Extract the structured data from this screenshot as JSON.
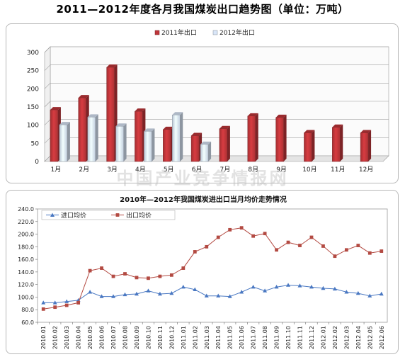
{
  "page_title": "2011—2012年度各月我国煤炭出口趋势图（单位：万吨）",
  "watermark": "中国产业竞争情报网",
  "chart_data": [
    {
      "type": "bar",
      "categories": [
        "1月",
        "2月",
        "3月",
        "4月",
        "5月",
        "6月",
        "7月",
        "8月",
        "9月",
        "10月",
        "11月",
        "12月"
      ],
      "series": [
        {
          "name": "2011年出口",
          "color": "#c0363a",
          "values": [
            142,
            175,
            259,
            138,
            88,
            71,
            90,
            125,
            121,
            79,
            94,
            79
          ]
        },
        {
          "name": "2012年出口",
          "color": "#d9e6f8",
          "values": [
            101,
            122,
            97,
            83,
            128,
            47,
            null,
            null,
            null,
            null,
            null,
            null
          ]
        }
      ],
      "yticks": [
        0,
        50,
        100,
        150,
        200,
        250,
        300
      ],
      "ylim": [
        0,
        300
      ],
      "legend_position": "top"
    },
    {
      "type": "line",
      "title": "2010年—2012年我国煤炭进出口当月均价走势情况",
      "categories": [
        "2010.01",
        "2010.02",
        "2010.03",
        "2010.04",
        "2010.05",
        "2010.06",
        "2010.07",
        "2010.08",
        "2010.09",
        "2010.10",
        "2010.11",
        "2010.12",
        "2011.01",
        "2011.02",
        "2011.03",
        "2011.04",
        "2011.05",
        "2011.06",
        "2011.07",
        "2011.08",
        "2011.09",
        "2011.10",
        "2011.11",
        "2011.12",
        "2012.01",
        "2012.02",
        "2012.03",
        "2012.04",
        "2012.05",
        "2012.06"
      ],
      "series": [
        {
          "name": "进口均价",
          "color": "#4a78c2",
          "marker": "triangle",
          "values": [
            91,
            91,
            93,
            95,
            108,
            101,
            101,
            104,
            105,
            110,
            105,
            106,
            116,
            112,
            102,
            102,
            101,
            108,
            116,
            110,
            116,
            119,
            118,
            116,
            114,
            113,
            108,
            106,
            102,
            105
          ]
        },
        {
          "name": "出口均价",
          "color": "#b34a42",
          "marker": "square",
          "values": [
            81,
            84,
            87,
            91,
            142,
            146,
            133,
            137,
            131,
            130,
            133,
            135,
            146,
            172,
            180,
            195,
            207,
            210,
            197,
            201,
            175,
            187,
            182,
            195,
            181,
            165,
            175,
            182,
            170,
            173
          ]
        }
      ],
      "yticks": [
        "60.0",
        "80.0",
        "100.0",
        "120.0",
        "140.0",
        "160.0",
        "180.0",
        "200.0",
        "220.0",
        "240.0"
      ],
      "ylim": [
        60,
        240
      ],
      "legend_position": "top-left"
    }
  ]
}
